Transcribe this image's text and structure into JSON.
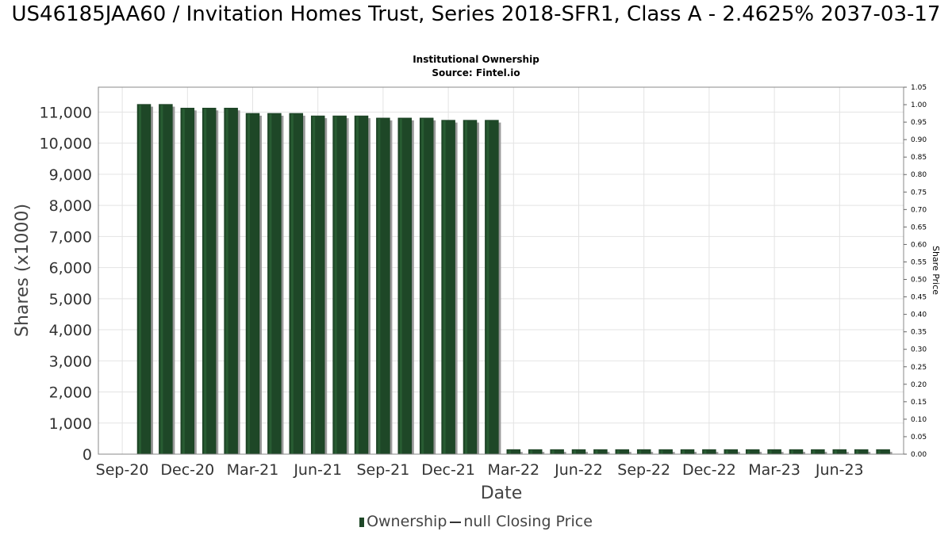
{
  "title": "US46185JAA60 / Invitation Homes Trust, Series 2018-SFR1, Class A - 2.4625% 2037-03-17",
  "subtitle_lines": [
    "Institutional Ownership",
    "Source: Fintel.io"
  ],
  "legend": {
    "ownership_label": "Ownership",
    "price_label": "null Closing Price"
  },
  "colors": {
    "bar": "#1e4727",
    "bar_shadow": "#9a9a9a",
    "grid": "#e3e3e3",
    "plot_border": "#888888"
  },
  "chart_data": {
    "type": "bar",
    "xlabel": "Date",
    "ylabel": "Shares (x1000)",
    "y2label": "Share Price",
    "ylim": [
      0,
      11800
    ],
    "y2lim": [
      0,
      1.05
    ],
    "grid": true,
    "legend_position": "bottom",
    "yticks": [
      0,
      1000,
      2000,
      3000,
      4000,
      5000,
      6000,
      7000,
      8000,
      9000,
      10000,
      11000
    ],
    "ytick_labels": [
      "0",
      "1,000",
      "2,000",
      "3,000",
      "4,000",
      "5,000",
      "6,000",
      "7,000",
      "8,000",
      "9,000",
      "10,000",
      "11,000"
    ],
    "y2ticks": [
      "0.00",
      "0.05",
      "0.10",
      "0.15",
      "0.20",
      "0.25",
      "0.30",
      "0.35",
      "0.40",
      "0.45",
      "0.50",
      "0.55",
      "0.60",
      "0.65",
      "0.70",
      "0.75",
      "0.80",
      "0.85",
      "0.90",
      "0.95",
      "1.00",
      "1.05"
    ],
    "xticks": [
      "Sep-20",
      "Dec-20",
      "Mar-21",
      "Jun-21",
      "Sep-21",
      "Dec-21",
      "Mar-22",
      "Jun-22",
      "Sep-22",
      "Dec-22",
      "Mar-23",
      "Jun-23"
    ],
    "series": [
      {
        "values": [
          11250,
          11250,
          11130,
          11130,
          11130,
          10960,
          10960,
          10960,
          10880,
          10880,
          10880,
          10810,
          10810,
          10810,
          10740,
          10740,
          10740,
          150,
          150,
          150,
          150,
          150,
          150,
          150,
          150,
          150,
          150,
          150,
          150,
          150,
          150,
          150,
          150,
          150,
          150
        ]
      }
    ]
  }
}
